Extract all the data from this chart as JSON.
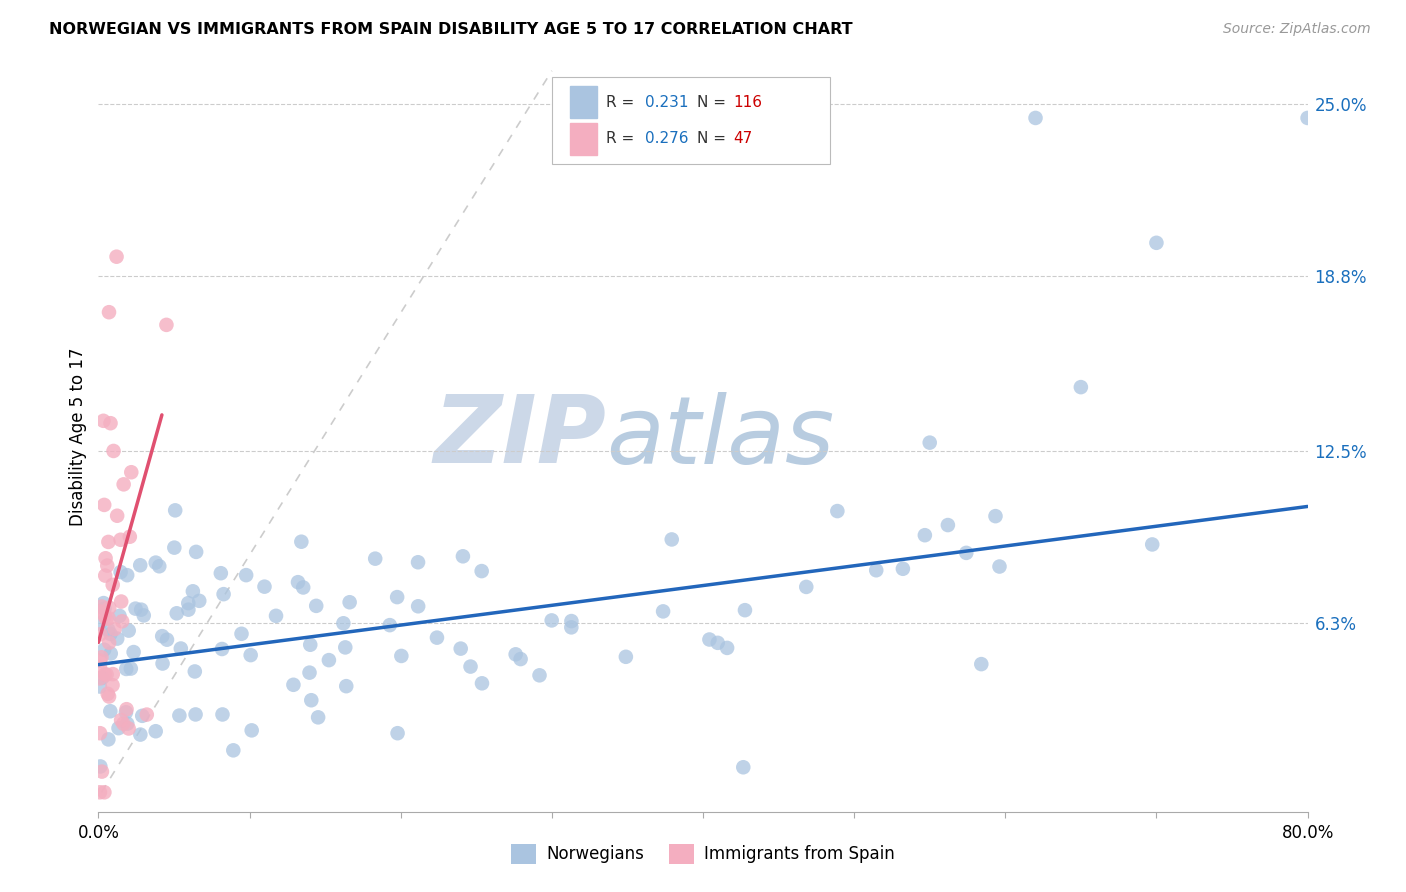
{
  "title": "NORWEGIAN VS IMMIGRANTS FROM SPAIN DISABILITY AGE 5 TO 17 CORRELATION CHART",
  "source": "Source: ZipAtlas.com",
  "ylabel": "Disability Age 5 to 17",
  "xlim": [
    0.0,
    0.8
  ],
  "ylim": [
    -0.005,
    0.265
  ],
  "yticks": [
    0.063,
    0.125,
    0.188,
    0.25
  ],
  "ytick_labels": [
    "6.3%",
    "12.5%",
    "18.8%",
    "25.0%"
  ],
  "norwegian_color": "#aac4e0",
  "spain_color": "#f4aec0",
  "norwegian_line_color": "#2266bb",
  "spain_line_color": "#e05070",
  "norwegian_R": 0.231,
  "norwegian_N": 116,
  "spain_R": 0.276,
  "spain_N": 47,
  "watermark_zip_color": "#c8d8e8",
  "watermark_atlas_color": "#b0c4d8",
  "legend_R_color": "#1a6fbd",
  "legend_N_color": "#cc0000",
  "ref_line_color": "#cccccc"
}
